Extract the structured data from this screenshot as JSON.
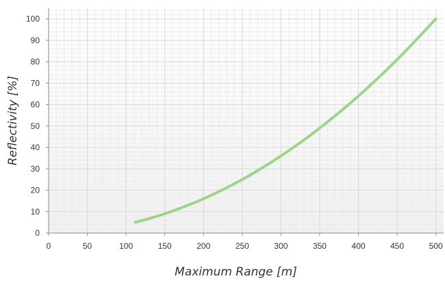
{
  "chart_data": {
    "type": "line",
    "title": "",
    "xlabel": "Maximum Range [m]",
    "ylabel": "Reflectivity [%]",
    "xlim": [
      0,
      510
    ],
    "ylim": [
      0,
      105
    ],
    "xticks": [
      0,
      50,
      100,
      150,
      200,
      250,
      300,
      350,
      400,
      450,
      500
    ],
    "yticks": [
      0,
      10,
      20,
      30,
      40,
      50,
      60,
      70,
      80,
      90,
      100
    ],
    "grid": true,
    "minor_grid": true,
    "legend": "none",
    "series": [
      {
        "color": "#9fd38a",
        "x": [
          112,
          150,
          200,
          250,
          300,
          350,
          400,
          450,
          500
        ],
        "y": [
          5,
          9,
          16,
          25,
          36,
          49,
          64,
          81,
          100
        ]
      }
    ]
  }
}
